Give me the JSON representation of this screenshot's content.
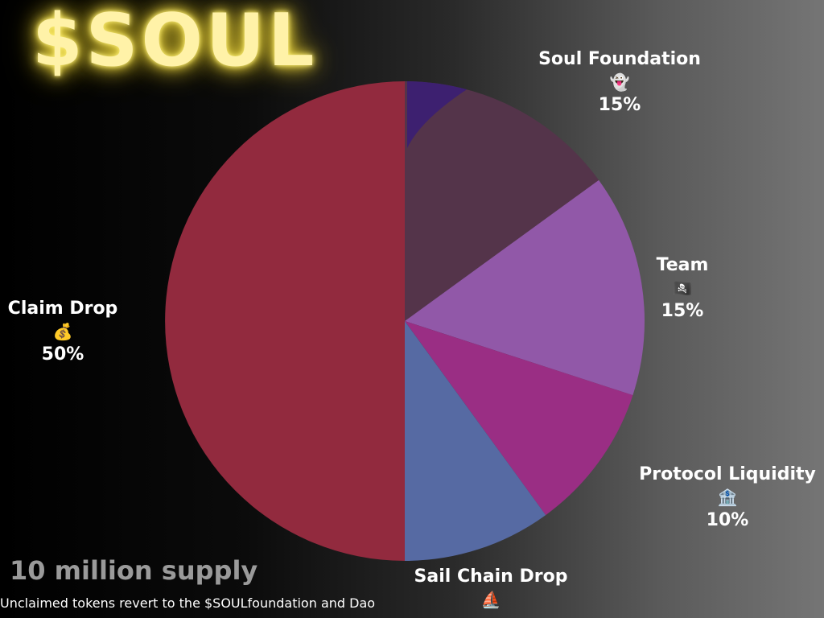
{
  "title": "$SOUL",
  "supply_text": "10 million supply",
  "footnote": "Unclaimed tokens revert to the $SOULfoundation and Dao",
  "chart_data": {
    "type": "pie",
    "title": "$SOUL",
    "slices": [
      {
        "label": "Soul Foundation",
        "value": 15,
        "display": "15%",
        "icon": "ghost-icon",
        "emoji": "👻",
        "color": "#54344a"
      },
      {
        "label": "Team",
        "value": 15,
        "display": "15%",
        "icon": "pirate-flag-icon",
        "emoji": "🏴‍☠️",
        "color": "#9158a8"
      },
      {
        "label": "Protocol Liquidity",
        "value": 10,
        "display": "10%",
        "icon": "bank-icon",
        "emoji": "🏦",
        "color": "#9a2e84"
      },
      {
        "label": "Sail Chain Drop",
        "value": 10,
        "display": "",
        "icon": "sailboat-icon",
        "emoji": "⛵",
        "color": "#566aa3"
      },
      {
        "label": "Claim Drop",
        "value": 50,
        "display": "50%",
        "icon": "money-bag-icon",
        "emoji": "💰",
        "color": "#922a3e"
      }
    ],
    "accent_color": "#3d2070"
  }
}
